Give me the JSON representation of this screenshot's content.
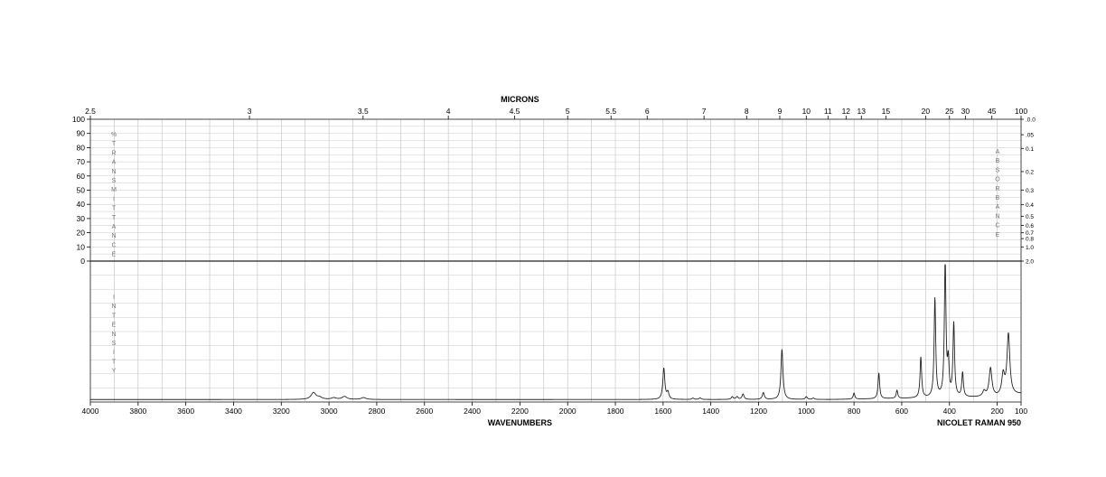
{
  "chart_data": {
    "type": "line",
    "title": "",
    "top_axis": {
      "label": "MICRONS",
      "ticks": [
        "2.5",
        "3",
        "3.5",
        "4",
        "4.5",
        "5",
        "5.5",
        "6",
        "7",
        "8",
        "9",
        "10",
        "11",
        "12",
        "13",
        "15",
        "20",
        "25",
        "30",
        "45",
        "100"
      ]
    },
    "bottom_axis": {
      "label": "WAVENUMBERS",
      "ticks": [
        "4000",
        "3800",
        "3600",
        "3400",
        "3200",
        "3000",
        "2800",
        "2600",
        "2400",
        "2200",
        "2000",
        "1800",
        "1600",
        "1400",
        "1200",
        "1000",
        "800",
        "600",
        "400",
        "200",
        "100"
      ],
      "xlim": [
        4000,
        100
      ]
    },
    "left_axis": {
      "ticks": [
        "100",
        "90",
        "80",
        "70",
        "60",
        "50",
        "40",
        "30",
        "20",
        "10",
        "0"
      ],
      "label_upper": [
        "%",
        "T",
        "R",
        "A",
        "N",
        "S",
        "M",
        "I",
        "T",
        "T",
        "A",
        "N",
        "C",
        "E"
      ],
      "label_lower": [
        "I",
        "N",
        "T",
        "E",
        "N",
        "S",
        "I",
        "T",
        "Y"
      ]
    },
    "right_axis": {
      "ticks": [
        ".0.0",
        ".05",
        "0.1",
        "0.2",
        "0.3",
        "0.4",
        "0.5",
        "0.6",
        "0.7",
        "0.8",
        "1.0",
        "2.0"
      ],
      "label": [
        "A",
        "B",
        "S",
        "O",
        "R",
        "B",
        "A",
        "N",
        "C",
        "E"
      ]
    },
    "instrument": "NICOLET RAMAN 950",
    "ylim": [
      0,
      100
    ],
    "series": [
      {
        "peaks": [
          {
            "x": 3065,
            "h": 5
          },
          {
            "x": 3040,
            "h": 1.5
          },
          {
            "x": 2980,
            "h": 1.2
          },
          {
            "x": 2935,
            "h": 2.2
          },
          {
            "x": 2855,
            "h": 1.4
          },
          {
            "x": 1597,
            "h": 23
          },
          {
            "x": 1580,
            "h": 5
          },
          {
            "x": 1475,
            "h": 1
          },
          {
            "x": 1445,
            "h": 1.2
          },
          {
            "x": 1310,
            "h": 2
          },
          {
            "x": 1290,
            "h": 2
          },
          {
            "x": 1265,
            "h": 4
          },
          {
            "x": 1180,
            "h": 5
          },
          {
            "x": 1102,
            "h": 37
          },
          {
            "x": 1000,
            "h": 2
          },
          {
            "x": 970,
            "h": 1
          },
          {
            "x": 800,
            "h": 4.5
          },
          {
            "x": 696,
            "h": 19
          },
          {
            "x": 620,
            "h": 6
          },
          {
            "x": 520,
            "h": 30
          },
          {
            "x": 461,
            "h": 73
          },
          {
            "x": 418,
            "h": 100
          },
          {
            "x": 405,
            "h": 24
          },
          {
            "x": 382,
            "h": 54
          },
          {
            "x": 345,
            "h": 18
          },
          {
            "x": 255,
            "h": 4
          },
          {
            "x": 228,
            "h": 21
          },
          {
            "x": 175,
            "h": 15
          },
          {
            "x": 153,
            "h": 45
          }
        ]
      }
    ]
  }
}
